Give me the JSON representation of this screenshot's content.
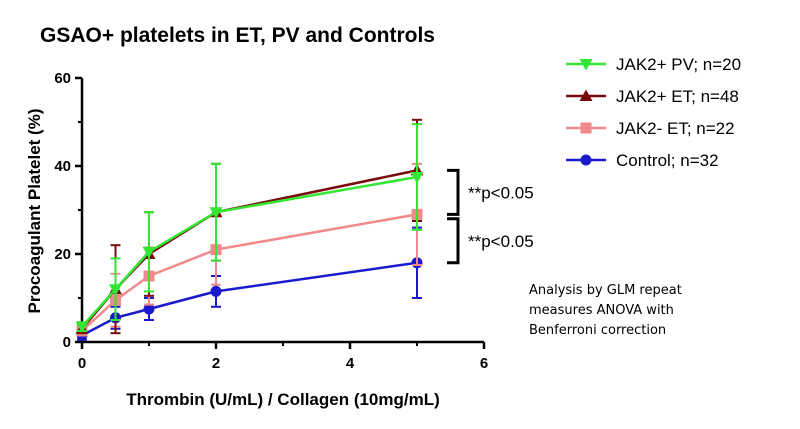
{
  "chart_data": {
    "type": "line",
    "title": "GSAO+ platelets in ET, PV and Controls",
    "xlabel": "Thrombin (U/mL) / Collagen (10mg/mL)",
    "ylabel": "Procoagulant Platelet (%)",
    "xlim": [
      0,
      6
    ],
    "ylim": [
      0,
      60
    ],
    "x_ticks": [
      "0",
      "2",
      "4",
      "6"
    ],
    "y_ticks": [
      "0",
      "20",
      "40",
      "60"
    ],
    "x": [
      0,
      0.5,
      1,
      2,
      5
    ],
    "grid": false,
    "legend_position": "top-right",
    "series": [
      {
        "name": "JAK2+ PV; n=20",
        "color": "#33e633",
        "marker": "triangle-down",
        "values": [
          3.5,
          12,
          20.5,
          29.5,
          37.5
        ],
        "error": [
          1,
          7,
          9,
          11,
          12
        ]
      },
      {
        "name": "JAK2+ ET; n=48",
        "color": "#7a0a0a",
        "marker": "triangle-up",
        "values": [
          3,
          12,
          20,
          29.5,
          39
        ],
        "error": [
          1,
          10,
          9.5,
          11,
          11.5
        ]
      },
      {
        "name": "JAK2- ET; n=22",
        "color": "#f08a8a",
        "marker": "square",
        "values": [
          2.5,
          9.5,
          15,
          21,
          29
        ],
        "error": [
          1,
          6,
          6.5,
          8,
          11.5
        ]
      },
      {
        "name": "Control; n=32",
        "color": "#1a1acc",
        "marker": "circle",
        "values": [
          1.5,
          5.5,
          7.5,
          11.5,
          18
        ],
        "error": [
          1,
          2.5,
          2.5,
          3.5,
          8
        ]
      }
    ],
    "annotations": [
      {
        "text": "**p<0.05",
        "bracket_y": [
          29,
          39
        ]
      },
      {
        "text": "**p<0.05",
        "bracket_y": [
          18,
          28
        ]
      }
    ],
    "note": [
      "Analysis by GLM repeat",
      "measures ANOVA with",
      "Benferroni correction"
    ]
  }
}
